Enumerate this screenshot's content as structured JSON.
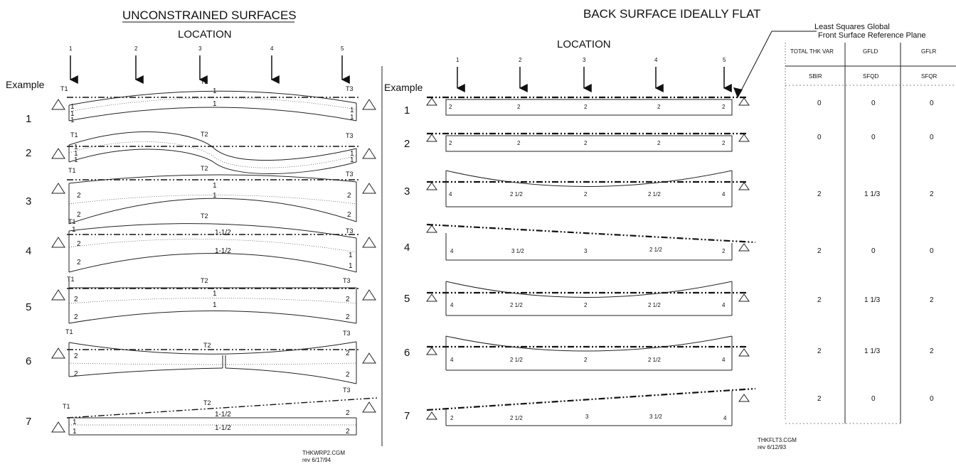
{
  "left_title": "UNCONSTRAINED SURFACES",
  "right_title": "BACK SURFACE IDEALLY FLAT",
  "location_label": "LOCATION",
  "example_label": "Example",
  "location_numbers": [
    "1",
    "2",
    "3",
    "4",
    "5"
  ],
  "example_numbers": [
    "1",
    "2",
    "3",
    "4",
    "5",
    "6",
    "7"
  ],
  "thickness_labels": {
    "t1": "T1",
    "t2": "T2",
    "t3": "T3"
  },
  "left_values": {
    "one": "1",
    "two": "2",
    "one_half": "1-1/2"
  },
  "right_rows": [
    [
      "2",
      "2",
      "2",
      "2",
      "2"
    ],
    [
      "2",
      "2",
      "2",
      "2",
      "2"
    ],
    [
      "4",
      "2 1/2",
      "2",
      "2 1/2",
      "4"
    ],
    [
      "4",
      "3 1/2",
      "3",
      "2 1/2",
      "2"
    ],
    [
      "4",
      "2 1/2",
      "2",
      "2 1/2",
      "4"
    ],
    [
      "4",
      "2 1/2",
      "2",
      "2 1/2",
      "4"
    ],
    [
      "2",
      "2 1/2",
      "3",
      "3 1/2",
      "4"
    ]
  ],
  "table": {
    "caption_line1": "Least Squares Global",
    "caption_line2": "Front Surface Reference Plane",
    "headers_top": [
      "TOTAL THK VAR",
      "GFLD",
      "GFLR"
    ],
    "headers_bottom": [
      "SBIR",
      "SFQD",
      "SFQR"
    ],
    "rows": [
      [
        "0",
        "0",
        "0"
      ],
      [
        "0",
        "0",
        "0"
      ],
      [
        "2",
        "1 1/3",
        "2"
      ],
      [
        "2",
        "0",
        "0"
      ],
      [
        "2",
        "1 1/3",
        "2"
      ],
      [
        "2",
        "1 1/3",
        "2"
      ],
      [
        "2",
        "0",
        "0"
      ]
    ]
  },
  "footnote_left": {
    "line1": "THKWRP2.CGM",
    "line2": "rev 6/17/94"
  },
  "footnote_right": {
    "line1": "THKFLT3.CGM",
    "line2": "rev 6/12/93"
  }
}
